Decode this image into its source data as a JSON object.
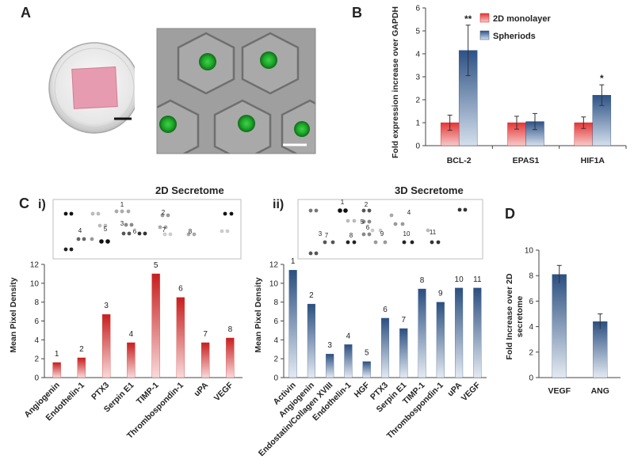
{
  "panel_labels": {
    "a": "A",
    "b": "B",
    "c": "C",
    "d": "D",
    "ci": "i)",
    "cii": "ii)"
  },
  "colors": {
    "red": "#c81e1e",
    "red_light": "#f6d3d3",
    "blue": "#2b4f80",
    "blue_light": "#dfe6f0"
  },
  "chart_data": [
    {
      "id": "B",
      "type": "bar",
      "categories": [
        "BCL-2",
        "EPAS1",
        "HIF1A"
      ],
      "series": [
        {
          "name": "2D monolayer",
          "values": [
            1.0,
            1.0,
            1.0
          ],
          "errors": [
            0.33,
            0.28,
            0.25
          ]
        },
        {
          "name": "Spheriods",
          "values": [
            4.15,
            1.05,
            2.2
          ],
          "errors": [
            1.1,
            0.35,
            0.45
          ]
        }
      ],
      "significance": [
        "**",
        "",
        "*"
      ],
      "ylabel": "Fold expression increase over GAPDH",
      "ylim": [
        0,
        6
      ],
      "yticks": [
        0,
        1,
        2,
        3,
        4,
        5,
        6
      ],
      "legend": "top-right",
      "grid": false
    },
    {
      "id": "C-i",
      "type": "bar",
      "title": "2D Secretome",
      "categories": [
        "Angiogenin",
        "Endothelin-1",
        "PTX3",
        "Serpin E1",
        "TIMP-1",
        "Thrombospondin-1",
        "uPA",
        "VEGF"
      ],
      "values": [
        1.6,
        2.1,
        6.7,
        3.7,
        11.0,
        8.5,
        3.7,
        4.2
      ],
      "labels": [
        "1",
        "2",
        "3",
        "4",
        "5",
        "6",
        "7",
        "8"
      ],
      "ylabel": "Mean Pixel Density",
      "ylim": [
        0,
        12
      ],
      "yticks": [
        0,
        2,
        4,
        6,
        8,
        10,
        12
      ],
      "grid": false
    },
    {
      "id": "C-ii",
      "type": "bar",
      "title": "3D Secretome",
      "categories": [
        "Activin",
        "Angiogenin",
        "Endostatin/Collagen XVIII",
        "Endothelin-1",
        "HGF",
        "PTX3",
        "Serpin E1",
        "TIMP-1",
        "Thrombospondin-1",
        "uPA",
        "VEGF"
      ],
      "values": [
        11.4,
        7.8,
        2.5,
        3.5,
        1.7,
        6.3,
        5.2,
        9.4,
        8.0,
        9.5,
        9.5
      ],
      "labels": [
        "1",
        "2",
        "3",
        "4",
        "5",
        "6",
        "7",
        "8",
        "9",
        "10",
        "11"
      ],
      "ylabel": "Mean Pixel Density",
      "ylim": [
        0,
        12
      ],
      "yticks": [
        0,
        2,
        4,
        6,
        8,
        10,
        12
      ],
      "grid": false
    },
    {
      "id": "D",
      "type": "bar",
      "categories": [
        "VEGF",
        "ANG"
      ],
      "values": [
        8.1,
        4.4
      ],
      "errors": [
        0.7,
        0.6
      ],
      "ylabel": "Fold Increase over 2D secretome",
      "ylim": [
        0,
        10
      ],
      "yticks": [
        0,
        2,
        4,
        6,
        8,
        10
      ],
      "grid": false
    }
  ],
  "blots": {
    "i": {
      "numbers": [
        "1",
        "2",
        "3",
        "4",
        "5",
        "6",
        "7",
        "8"
      ]
    },
    "ii": {
      "numbers": [
        "1",
        "2",
        "3",
        "4",
        "5",
        "6",
        "7",
        "8",
        "9",
        "10",
        "11"
      ]
    }
  }
}
